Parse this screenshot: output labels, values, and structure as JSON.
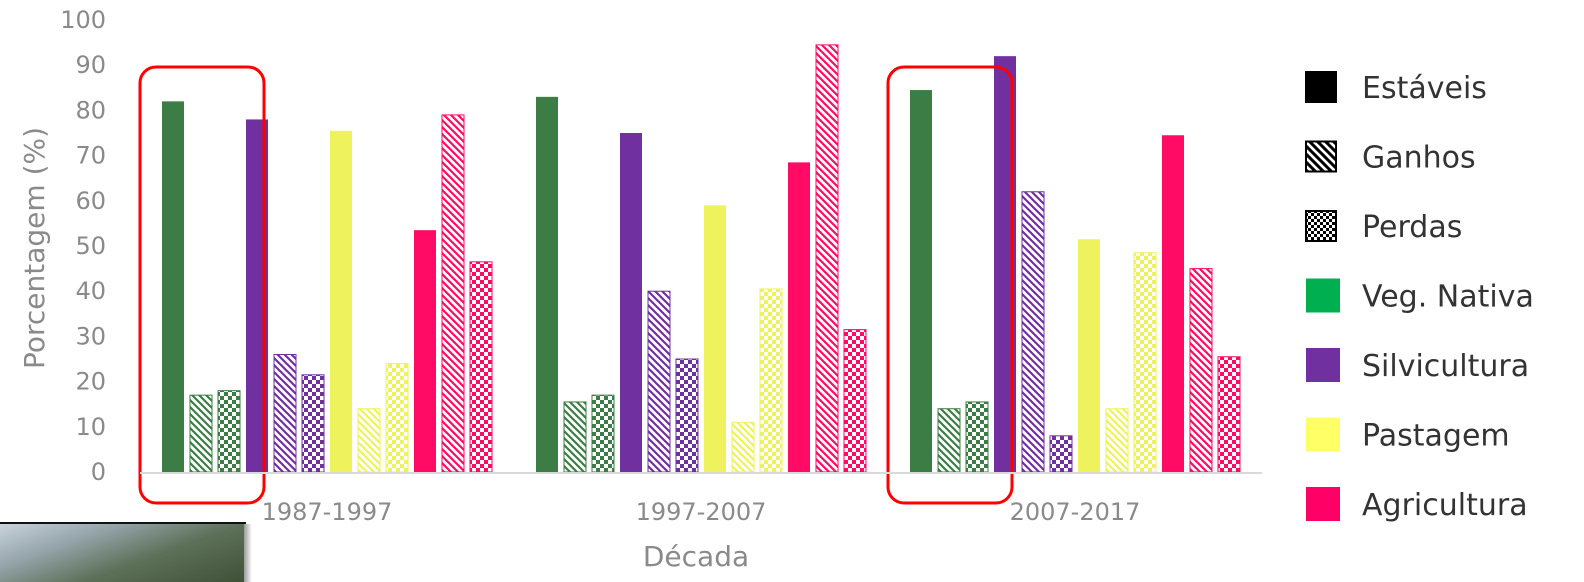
{
  "chart_data": {
    "type": "bar",
    "title": "",
    "xlabel": "Década",
    "ylabel": "Porcentagem (%)",
    "ylim": [
      0,
      100
    ],
    "yticks": [
      0,
      10,
      20,
      30,
      40,
      50,
      60,
      70,
      80,
      90,
      100
    ],
    "grid": false,
    "legend_position": "right",
    "categories": [
      "1987-1997",
      "1997-2007",
      "2007-2017"
    ],
    "legend": {
      "patterns": [
        {
          "label": "Estáveis",
          "pattern": "solid"
        },
        {
          "label": "Ganhos",
          "pattern": "diagonal-hatch"
        },
        {
          "label": "Perdas",
          "pattern": "checker"
        }
      ],
      "classes": [
        {
          "label": "Veg. Nativa",
          "color": "#00b050"
        },
        {
          "label": "Silvicultura",
          "color": "#7030a0"
        },
        {
          "label": "Pastagem",
          "color": "#ffff66"
        },
        {
          "label": "Agricultura",
          "color": "#ff0066"
        }
      ]
    },
    "series": [
      {
        "class": "Veg. Nativa",
        "color": "#3c7d46",
        "pattern": "solid",
        "values": [
          82,
          83,
          84.5
        ]
      },
      {
        "class": "Veg. Nativa",
        "color": "#3c7d46",
        "pattern": "hatch",
        "values": [
          17,
          15.5,
          14
        ]
      },
      {
        "class": "Veg. Nativa",
        "color": "#3c7d46",
        "pattern": "checker",
        "values": [
          18,
          17,
          15.5
        ]
      },
      {
        "class": "Silvicultura",
        "color": "#7030a0",
        "pattern": "solid",
        "values": [
          78,
          75,
          92
        ]
      },
      {
        "class": "Silvicultura",
        "color": "#7030a0",
        "pattern": "hatch",
        "values": [
          26,
          40,
          62
        ]
      },
      {
        "class": "Silvicultura",
        "color": "#7030a0",
        "pattern": "checker",
        "values": [
          21.5,
          25,
          8
        ]
      },
      {
        "class": "Pastagem",
        "color": "#eef25c",
        "pattern": "solid",
        "values": [
          75.5,
          59,
          51.5
        ]
      },
      {
        "class": "Pastagem",
        "color": "#eef25c",
        "pattern": "hatch",
        "values": [
          14,
          11,
          14
        ]
      },
      {
        "class": "Pastagem",
        "color": "#eef25c",
        "pattern": "checker",
        "values": [
          24,
          40.5,
          48.5
        ]
      },
      {
        "class": "Agricultura",
        "color": "#ff0a64",
        "pattern": "solid",
        "values": [
          53.5,
          68.5,
          74.5
        ]
      },
      {
        "class": "Agricultura",
        "color": "#ff0a64",
        "pattern": "hatch",
        "values": [
          79,
          94.5,
          45
        ]
      },
      {
        "class": "Agricultura",
        "color": "#ff0a64",
        "pattern": "checker",
        "values": [
          46.5,
          31.5,
          25.5
        ]
      }
    ],
    "annotations": [
      {
        "type": "highlight-box",
        "color": "#ff0000",
        "group": "1987-1997",
        "class": "Veg. Nativa"
      },
      {
        "type": "highlight-box",
        "color": "#ff0000",
        "group": "2007-2017",
        "class": "Veg. Nativa"
      }
    ]
  }
}
